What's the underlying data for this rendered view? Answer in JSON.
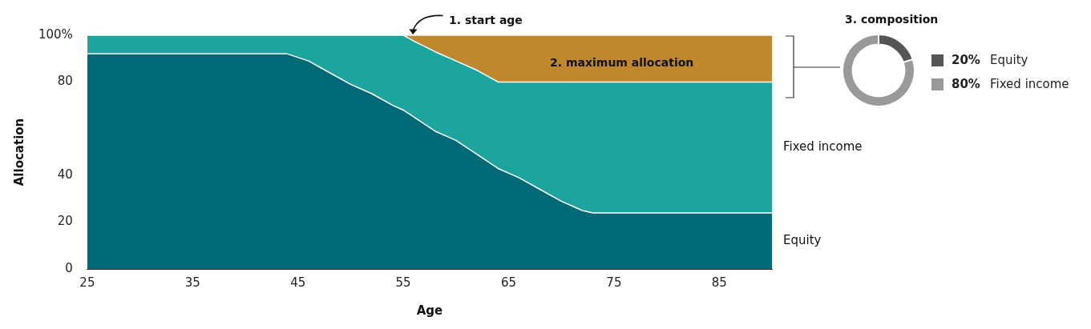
{
  "chart_data": [
    {
      "type": "area",
      "stacked": true,
      "xlabel": "Age",
      "ylabel": "Allocation",
      "x": [
        25,
        44,
        46,
        48,
        50,
        52,
        54,
        55,
        56,
        58,
        60,
        62,
        64,
        66,
        68,
        70,
        72,
        73,
        90
      ],
      "series": [
        {
          "name": "Equity",
          "color": "#006976",
          "values": [
            92,
            92,
            89,
            84,
            79,
            75,
            70,
            68,
            65,
            59,
            55,
            49,
            43,
            39,
            34,
            29,
            25,
            24,
            24
          ]
        },
        {
          "name": "Fixed income",
          "color": "#1ca59c",
          "values": [
            8,
            8,
            11,
            16,
            21,
            25,
            30,
            32,
            32.5,
            34,
            34,
            36,
            37,
            41,
            46,
            51,
            55,
            56,
            56
          ]
        },
        {
          "color": "#c0882e",
          "values": [
            0,
            0,
            0,
            0,
            0,
            0,
            0,
            0,
            2.5,
            7,
            11,
            15,
            20,
            20,
            20,
            20,
            20,
            20,
            20
          ]
        }
      ],
      "xlim": [
        25,
        90
      ],
      "xticks": [
        25,
        35,
        45,
        55,
        65,
        75,
        85
      ],
      "ylim": [
        0,
        100
      ],
      "yticks": [
        0,
        20,
        40,
        80,
        {
          "value": 100,
          "label": "100%"
        }
      ],
      "grid": false,
      "legend": false,
      "annotations": [
        "1. start age",
        "2. maximum allocation"
      ]
    },
    {
      "type": "donut",
      "title": "3. composition",
      "categories": [
        "Equity",
        "Fixed income"
      ],
      "values": [
        20,
        80
      ],
      "colors": [
        "#555555",
        "#999999"
      ],
      "value_labels": [
        "20%",
        "80%"
      ]
    }
  ]
}
